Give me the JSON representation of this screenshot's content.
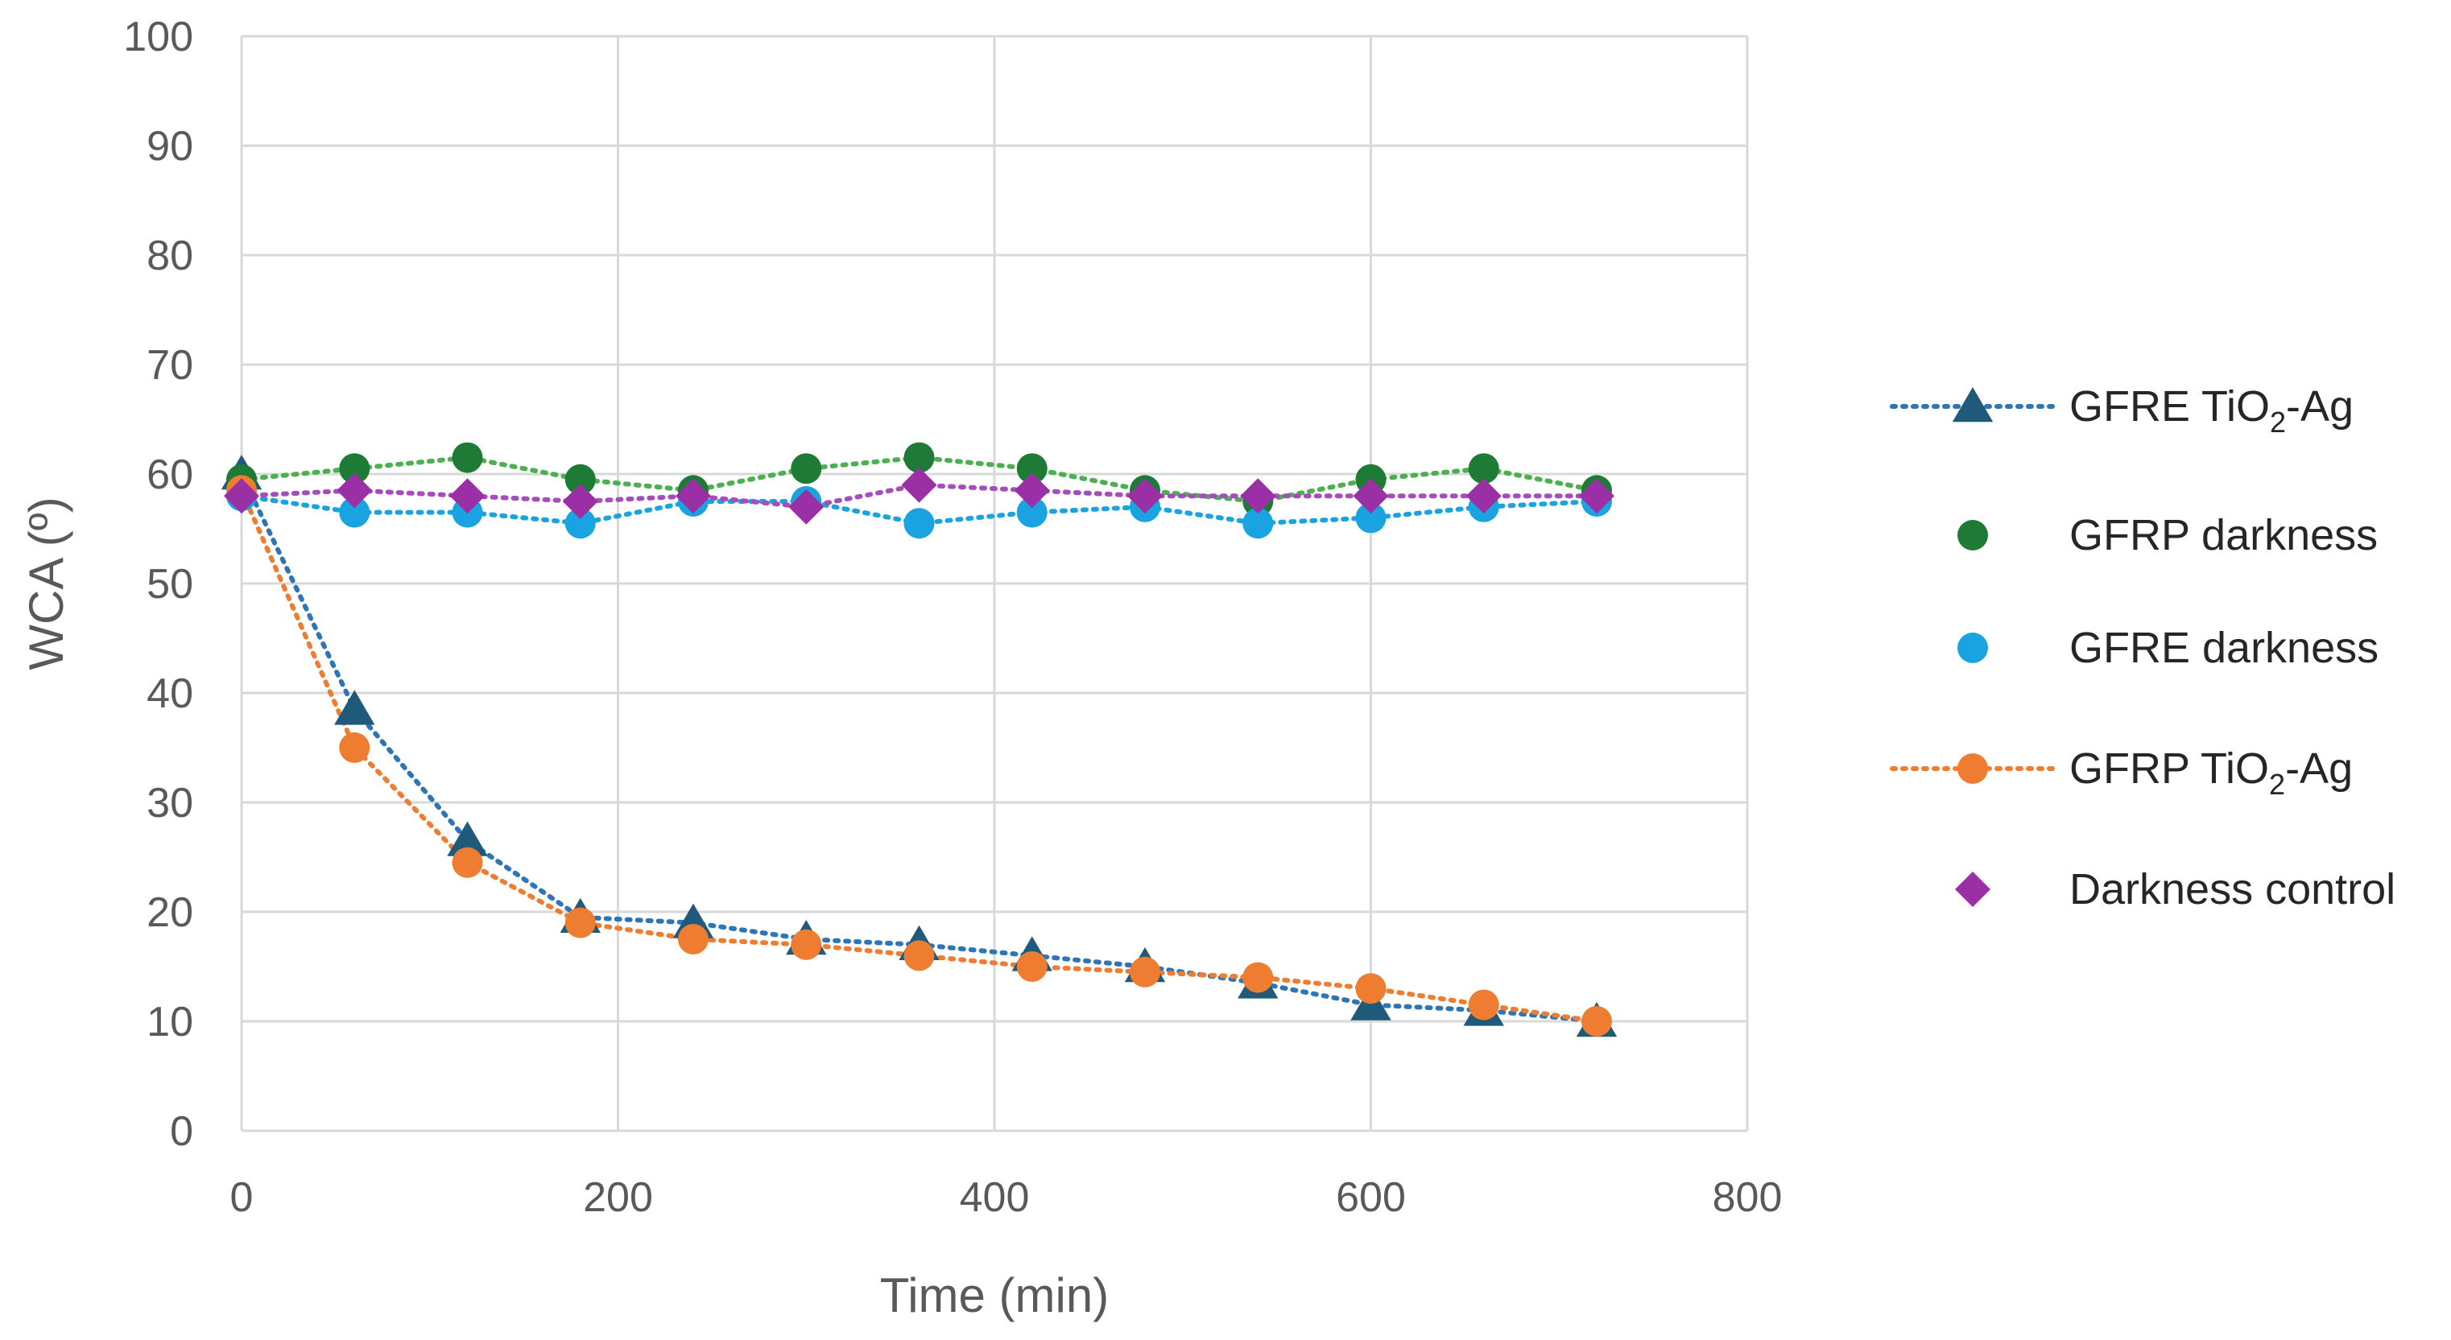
{
  "chart_data": {
    "type": "scatter",
    "title": "",
    "xlabel": "Time (min)",
    "ylabel": "WCA (º)",
    "xlim": [
      0,
      800
    ],
    "ylim": [
      0,
      100
    ],
    "x_ticks": [
      "0",
      "200",
      "400",
      "600",
      "800"
    ],
    "y_ticks": [
      "0",
      "10",
      "20",
      "30",
      "40",
      "50",
      "60",
      "70",
      "80",
      "90",
      "100"
    ],
    "grid": true,
    "legend_position": "right",
    "series": [
      {
        "name": "GFRE TiO2-Ag",
        "legend_parts": [
          "GFRE TiO",
          "2",
          "-Ag"
        ],
        "marker": "triangle",
        "color": "#1f5a7a",
        "trendline": "dotted",
        "trend_color": "#2e75b6",
        "points": [
          [
            0,
            60
          ],
          [
            60,
            38.5
          ],
          [
            120,
            26.5
          ],
          [
            180,
            19.5
          ],
          [
            240,
            19
          ],
          [
            300,
            17.5
          ],
          [
            360,
            17
          ],
          [
            420,
            16
          ],
          [
            480,
            15
          ],
          [
            540,
            13.5
          ],
          [
            600,
            11.5
          ],
          [
            660,
            11
          ],
          [
            720,
            10
          ]
        ]
      },
      {
        "name": "GFRP darkness",
        "marker": "circle",
        "color": "#1e7b35",
        "trendline": "dotted",
        "trend_color": "#4caf50",
        "points": [
          [
            0,
            59.5
          ],
          [
            60,
            60.5
          ],
          [
            120,
            61.5
          ],
          [
            180,
            59.5
          ],
          [
            240,
            58.5
          ],
          [
            300,
            60.5
          ],
          [
            360,
            61.5
          ],
          [
            420,
            60.5
          ],
          [
            480,
            58.5
          ],
          [
            540,
            57.5
          ],
          [
            600,
            59.5
          ],
          [
            660,
            60.5
          ],
          [
            720,
            58.5
          ]
        ]
      },
      {
        "name": "GFRE darkness",
        "marker": "circle",
        "color": "#19a3e0",
        "trendline": "dotted",
        "trend_color": "#19a3e0",
        "points": [
          [
            0,
            58
          ],
          [
            60,
            56.5
          ],
          [
            120,
            56.5
          ],
          [
            180,
            55.5
          ],
          [
            240,
            57.5
          ],
          [
            300,
            57.5
          ],
          [
            360,
            55.5
          ],
          [
            420,
            56.5
          ],
          [
            480,
            57
          ],
          [
            540,
            55.5
          ],
          [
            600,
            56
          ],
          [
            660,
            57
          ],
          [
            720,
            57.5
          ]
        ]
      },
      {
        "name": "GFRP TiO2-Ag",
        "legend_parts": [
          "GFRP TiO",
          "2",
          "-Ag"
        ],
        "marker": "circle",
        "color": "#ee7d31",
        "trendline": "dotted",
        "trend_color": "#ee7d31",
        "points": [
          [
            0,
            58.5
          ],
          [
            60,
            35
          ],
          [
            120,
            24.5
          ],
          [
            180,
            19
          ],
          [
            240,
            17.5
          ],
          [
            300,
            17
          ],
          [
            360,
            16
          ],
          [
            420,
            15
          ],
          [
            480,
            14.5
          ],
          [
            540,
            14
          ],
          [
            600,
            13
          ],
          [
            660,
            11.5
          ],
          [
            720,
            10
          ]
        ]
      },
      {
        "name": "Darkness control",
        "marker": "diamond",
        "color": "#9b2fa6",
        "trendline": "dotted",
        "trend_color": "#a64dbd",
        "points": [
          [
            0,
            58
          ],
          [
            60,
            58.5
          ],
          [
            120,
            58
          ],
          [
            180,
            57.5
          ],
          [
            240,
            58
          ],
          [
            300,
            57
          ],
          [
            360,
            59
          ],
          [
            420,
            58.5
          ],
          [
            480,
            58
          ],
          [
            540,
            58
          ],
          [
            600,
            58
          ],
          [
            660,
            58
          ],
          [
            720,
            58
          ]
        ]
      }
    ]
  }
}
